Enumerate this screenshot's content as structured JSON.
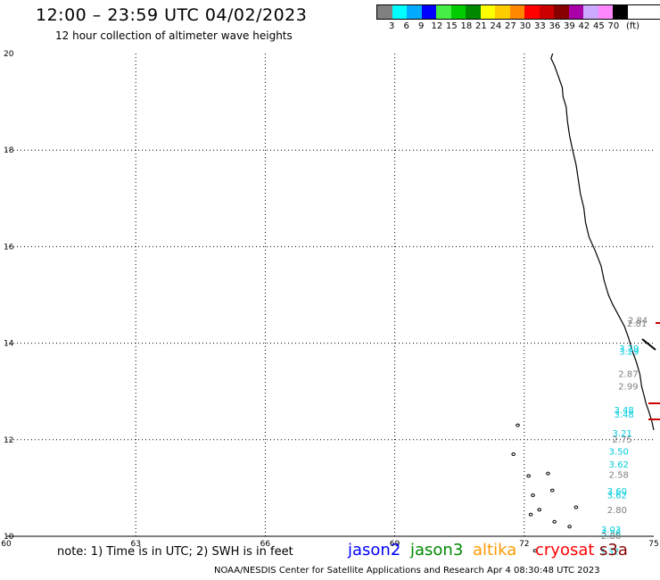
{
  "header": {
    "title": "12:00 – 23:59 UTC 04/02/2023",
    "subtitle": "12 hour collection of altimeter wave heights"
  },
  "legend": {
    "unit": "(ft)",
    "labels": [
      "3",
      "6",
      "9",
      "12",
      "15",
      "18",
      "21",
      "24",
      "27",
      "30",
      "33",
      "36",
      "39",
      "42",
      "45",
      "70"
    ],
    "colors": [
      "#808080",
      "#00ffff",
      "#00aaff",
      "#0000ff",
      "#44ee44",
      "#00cc00",
      "#008800",
      "#ffff00",
      "#ffcc00",
      "#ff8800",
      "#ff0000",
      "#cc0000",
      "#880000",
      "#aa00aa",
      "#ccaaff",
      "#ff88ff",
      "#000000"
    ]
  },
  "map": {
    "x_ticks": [
      "60",
      "63",
      "66",
      "69",
      "72",
      "75"
    ],
    "y_ticks": [
      "20",
      "18",
      "16",
      "14",
      "12",
      "10"
    ],
    "lon_range": [
      60,
      75
    ],
    "lat_range": [
      10,
      20
    ],
    "wave_annotations": [
      {
        "text": "2.84",
        "lon": 74.4,
        "lat": 14.41,
        "color": "#808080"
      },
      {
        "text": "2.81",
        "lon": 74.38,
        "lat": 14.34,
        "color": "#808080"
      },
      {
        "text": "3.29",
        "lon": 74.2,
        "lat": 13.83,
        "color": "#00ccdd"
      },
      {
        "text": "3.29",
        "lon": 74.2,
        "lat": 13.76,
        "color": "#00ccdd"
      },
      {
        "text": "2.87",
        "lon": 74.18,
        "lat": 13.3,
        "color": "#808080"
      },
      {
        "text": "2.99",
        "lon": 74.18,
        "lat": 13.04,
        "color": "#808080"
      },
      {
        "text": "3.48",
        "lon": 74.08,
        "lat": 12.55,
        "color": "#00ccdd"
      },
      {
        "text": "3.48",
        "lon": 74.08,
        "lat": 12.46,
        "color": "#00ccdd"
      },
      {
        "text": "3.21",
        "lon": 74.04,
        "lat": 12.07,
        "color": "#00ccdd"
      },
      {
        "text": "2.75",
        "lon": 74.04,
        "lat": 11.94,
        "color": "#808080"
      },
      {
        "text": "3.50",
        "lon": 73.96,
        "lat": 11.69,
        "color": "#00ccdd"
      },
      {
        "text": "3.62",
        "lon": 73.96,
        "lat": 11.42,
        "color": "#00ccdd"
      },
      {
        "text": "2.58",
        "lon": 73.96,
        "lat": 11.21,
        "color": "#808080"
      },
      {
        "text": "3.60",
        "lon": 73.92,
        "lat": 10.87,
        "color": "#00ccdd"
      },
      {
        "text": "3.62",
        "lon": 73.92,
        "lat": 10.79,
        "color": "#00ccdd"
      },
      {
        "text": "2.80",
        "lon": 73.92,
        "lat": 10.48,
        "color": "#808080"
      },
      {
        "text": "3.03",
        "lon": 73.78,
        "lat": 10.07,
        "color": "#00ccdd"
      },
      {
        "text": "3.36",
        "lon": 73.78,
        "lat": 10.0,
        "color": "#00ccdd"
      },
      {
        "text": "2.86",
        "lon": 73.78,
        "lat": 9.94,
        "color": "#808080"
      },
      {
        "text": "3.32",
        "lon": 73.74,
        "lat": 9.62,
        "color": "#00ccdd"
      }
    ]
  },
  "footer": {
    "note": "note: 1) Time is in UTC; 2) SWH is in feet",
    "satellites": [
      {
        "name": "jason2",
        "color": "#0000ff"
      },
      {
        "name": "jason3",
        "color": "#008800"
      },
      {
        "name": "altika",
        "color": "#ff9900"
      },
      {
        "name": "cryosat",
        "color": "#ff0000"
      },
      {
        "name": "s3a",
        "color": "#880000"
      }
    ],
    "credit": "NOAA/NESDIS Center for Satellite Applications and Research    Apr  4 08:30:48 UTC 2023"
  }
}
